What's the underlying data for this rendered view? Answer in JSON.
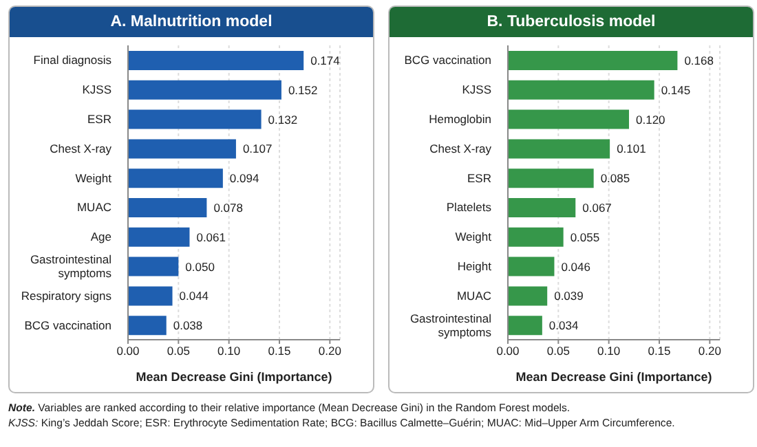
{
  "chart_data": [
    {
      "type": "bar",
      "orientation": "horizontal",
      "title": "A. Malnutrition model",
      "xlabel": "Mean Decrease Gini (Importance)",
      "categories": [
        "Final diagnosis",
        "KJSS",
        "ESR",
        "Chest X-ray",
        "Weight",
        "MUAC",
        "Age",
        "Gastrointestinal symptoms",
        "Respiratory signs",
        "BCG vaccination"
      ],
      "values": [
        0.174,
        0.152,
        0.132,
        0.107,
        0.094,
        0.078,
        0.061,
        0.05,
        0.044,
        0.038
      ],
      "color": "#1f5fb0",
      "xlim": [
        0,
        0.21
      ],
      "xticks": [
        {
          "value": 0,
          "label": "0.00"
        },
        {
          "value": 0.05,
          "label": "0.05"
        },
        {
          "value": 0.1,
          "label": "0.10"
        },
        {
          "value": 0.15,
          "label": "0.15"
        },
        {
          "value": 0.2,
          "label": "0.20"
        }
      ],
      "grid": "x",
      "value_labels": [
        "0.174",
        "0.152",
        "0.132",
        "0.107",
        "0.094",
        "0.078",
        "0.061",
        "0.050",
        "0.044",
        "0.038"
      ],
      "annotations": [
        "Note. Variables are ranked according to their relative importance (Mean Decrease Gini) in the Random Forest models.",
        "KJSS: King’s Jeddah Score; ESR: Erythrocyte Sedimentation Rate; BCG: Bacillus Calmette–Guérin; MUAC: Mid–Upper Arm Circumference."
      ]
    },
    {
      "type": "bar",
      "orientation": "horizontal",
      "title": "B. Tuberculosis model",
      "xlabel": "Mean Decrease Gini (Importance)",
      "categories": [
        "BCG vaccination",
        "KJSS",
        "Hemoglobin",
        "Chest X-ray",
        "ESR",
        "Platelets",
        "Weight",
        "Height",
        "MUAC",
        "Gastrointestinal symptoms"
      ],
      "values": [
        0.168,
        0.145,
        0.12,
        0.101,
        0.085,
        0.067,
        0.055,
        0.046,
        0.039,
        0.034
      ],
      "color": "#36974a",
      "xlim": [
        0,
        0.21
      ],
      "xticks": [
        {
          "value": 0,
          "label": "0.00"
        },
        {
          "value": 0.05,
          "label": "0.05"
        },
        {
          "value": 0.1,
          "label": "0.10"
        },
        {
          "value": 0.15,
          "label": "0.15"
        },
        {
          "value": 0.2,
          "label": "0.20"
        }
      ],
      "grid": "x",
      "value_labels": [
        "0.168",
        "0.145",
        "0.120",
        "0.101",
        "0.085",
        "0.067",
        "0.055",
        "0.046",
        "0.039",
        "0.034"
      ]
    }
  ]
}
